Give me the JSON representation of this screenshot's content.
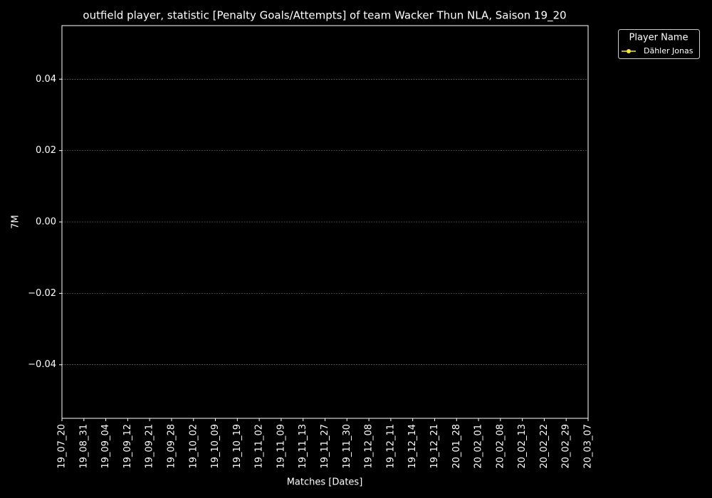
{
  "chart_data": {
    "type": "line",
    "title": "outfield player, statistic [Penalty Goals/Attempts] of team Wacker Thun NLA, Saison 19_20",
    "x_label": "Matches [Dates]",
    "y_label": "7M",
    "categories": [
      "19_07_20",
      "19_08_31",
      "19_09_04",
      "19_09_12",
      "19_09_21",
      "19_09_28",
      "19_10_02",
      "19_10_09",
      "19_10_19",
      "19_11_02",
      "19_11_09",
      "19_11_13",
      "19_11_27",
      "19_11_30",
      "19_12_08",
      "19_12_11",
      "19_12_14",
      "19_12_21",
      "20_01_28",
      "20_02_01",
      "20_02_08",
      "20_02_13",
      "20_02_22",
      "20_02_29",
      "20_03_07"
    ],
    "series": [
      {
        "name": "Dähler Jonas",
        "color": "#f5e642",
        "values": [
          null,
          null,
          null,
          null,
          null,
          null,
          null,
          null,
          null,
          null,
          null,
          null,
          null,
          null,
          null,
          null,
          null,
          null,
          null,
          null,
          null,
          null,
          null,
          null,
          null
        ]
      }
    ],
    "ylim": [
      -0.055,
      0.055
    ],
    "yticks": [
      {
        "value": -0.04,
        "label": "−0.04"
      },
      {
        "value": -0.02,
        "label": "−0.02"
      },
      {
        "value": 0,
        "label": "0.00"
      },
      0.02,
      0.04
    ],
    "grid": true,
    "legend_title": "Player Name",
    "legend_position": "outside-right"
  }
}
